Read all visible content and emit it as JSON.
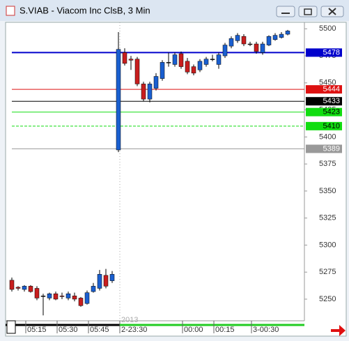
{
  "chart_data": {
    "type": "candlestick",
    "title": "S.VIAB - Viacom Inc ClsB, 3 Min",
    "categories": [
      null,
      null,
      "05:15",
      null,
      null,
      null,
      null,
      "05:30",
      null,
      null,
      null,
      null,
      "05:45",
      null,
      null,
      null,
      null,
      "2-23:30",
      null,
      null,
      null,
      null,
      null,
      null,
      null,
      null,
      null,
      "00:00",
      null,
      null,
      null,
      null,
      "00:15",
      null,
      null,
      null,
      null,
      null,
      "3-00:30",
      null,
      null,
      null,
      null,
      null,
      null
    ],
    "x_note": "2013",
    "open": [
      5267.5,
      5261,
      5259,
      5262,
      5260,
      5253,
      5251,
      5255,
      5253,
      5251,
      5253,
      5251,
      5246,
      5257,
      5260,
      5272,
      5267,
      5388,
      5478,
      5472,
      5472,
      5449,
      5435,
      5445,
      5454,
      5469,
      5467,
      5477,
      5470,
      5465,
      5462,
      5467,
      5472,
      5467,
      5475,
      5484,
      5489,
      5493,
      5486,
      5486,
      5478,
      5485,
      5490,
      5492,
      5495
    ],
    "high": [
      5270,
      5262,
      5263,
      5263,
      5262,
      5255,
      5256,
      5257,
      5256,
      5257,
      5256,
      5252,
      5258,
      5265,
      5277,
      5278,
      5276,
      5497,
      5482,
      5475,
      5474,
      5451,
      5451,
      5459,
      5471,
      5478,
      5478,
      5479,
      5473,
      5467,
      5472,
      5474,
      5476,
      5478,
      5487,
      5493,
      5496,
      5495,
      5488,
      5488,
      5488,
      5494,
      5496,
      5497,
      5499
    ],
    "low": [
      5257,
      5258,
      5257,
      5256,
      5249,
      5235,
      5249,
      5249,
      5250,
      5249,
      5248,
      5243,
      5245,
      5256,
      5258,
      5260,
      5265,
      5386,
      5466,
      5462,
      5447,
      5433,
      5432,
      5443,
      5452,
      5465,
      5465,
      5463,
      5458,
      5457,
      5460,
      5465,
      5470,
      5463,
      5473,
      5482,
      5487,
      5484,
      5484,
      5477,
      5476,
      5484,
      5489,
      5491,
      5494
    ],
    "close": [
      5259,
      5260,
      5262,
      5257,
      5251,
      5253,
      5255,
      5250,
      5252.5,
      5255,
      5250,
      5244,
      5256,
      5262,
      5273,
      5262,
      5273,
      5481,
      5468,
      5471,
      5449,
      5435,
      5449,
      5456,
      5469,
      5469,
      5476,
      5465,
      5460,
      5459,
      5470,
      5472,
      5472,
      5476,
      5485,
      5491,
      5494,
      5486,
      5486,
      5479,
      5486,
      5493,
      5494,
      5495,
      5498
    ],
    "up_color": "#1a5fd0",
    "down_color": "#c81e1e",
    "doji_color": "#202020",
    "ylim": [
      5230,
      5506
    ],
    "yticks": [
      5500,
      5475,
      5450,
      5425,
      5400,
      5375,
      5350,
      5325,
      5300,
      5275,
      5250
    ],
    "levels": [
      {
        "value": 5478,
        "color": "#0000cc",
        "text_color": "#ffffff",
        "style": "solid"
      },
      {
        "value": 5444,
        "color": "#dd1111",
        "text_color": "#ffffff",
        "style": "solid"
      },
      {
        "value": 5433,
        "color": "#000000",
        "text_color": "#ffffff",
        "style": "solid"
      },
      {
        "value": 5423,
        "color": "#11dd11",
        "text_color": "#000000",
        "style": "solid"
      },
      {
        "value": 5410,
        "color": "#11dd11",
        "text_color": "#000000",
        "style": "dashed"
      },
      {
        "value": 5389,
        "color": "#999999",
        "text_color": "#ffffff",
        "style": "solid"
      }
    ]
  }
}
